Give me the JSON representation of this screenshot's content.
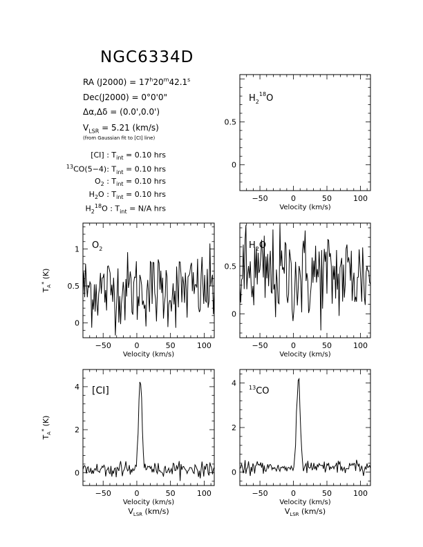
{
  "header": {
    "title": "NGC6334D",
    "ra": "RA (J2000) = 17h20m42.1s",
    "ra_parts": {
      "pre": "RA (J2000) =  17",
      "h": "h",
      "m_val": "20",
      "m": "m",
      "s_val": "42.1",
      "s": "s"
    },
    "dec": "Dec(J2000) = 0°0'0\"",
    "offset": "Δα,Δδ = (0.0',0.0')",
    "vlsr": "V_LSR = 5.21 (km/s)",
    "vlsr_parts": {
      "pre": "V",
      "sub": "LSR",
      "post": " = 5.21  (km/s)"
    },
    "vlsr_note": "(from Gaussian fit to [CI] line)"
  },
  "integration_times": [
    {
      "label_html": "[CI] : T<sub>int</sub> = 0.10 hrs"
    },
    {
      "label_html": "<sup>13</sup>CO(5−4): T<sub>int</sub> = 0.10 hrs"
    },
    {
      "label_html": "O<sub>2</sub> : T<sub>int</sub> = 0.10 hrs"
    },
    {
      "label_html": "H<sub>2</sub>O : T<sub>int</sub> = 0.10 hrs"
    },
    {
      "label_html": "H<sub>2</sub><sup>18</sup>O : T<sub>int</sub> = N/A hrs"
    }
  ],
  "chart_data": [
    {
      "type": "line",
      "id": "h218o",
      "label": "H2 18O",
      "xlabel": "Velocity (km/s)",
      "ylabel": "",
      "xlim": [
        -80,
        115
      ],
      "ylim": [
        -0.3,
        1.05
      ],
      "xticks": [
        -50,
        0,
        50,
        100
      ],
      "yticks": [
        0,
        0.5
      ],
      "x": [],
      "y": []
    },
    {
      "type": "line",
      "id": "o2",
      "label": "O2",
      "xlabel": "Velocity (km/s)",
      "ylabel": "T_A* (K)",
      "xlim": [
        -80,
        115
      ],
      "ylim": [
        -0.2,
        1.35
      ],
      "xticks": [
        -50,
        0,
        50,
        100
      ],
      "yticks": [
        0,
        0.5,
        1
      ],
      "noise_sigma": 0.25,
      "baseline": 0.45,
      "peak": null
    },
    {
      "type": "line",
      "id": "h2o",
      "label": "H2O",
      "xlabel": "Velocity (km/s)",
      "ylabel": "",
      "xlim": [
        -80,
        115
      ],
      "ylim": [
        -0.25,
        0.95
      ],
      "xticks": [
        -50,
        0,
        50,
        100
      ],
      "yticks": [
        0,
        0.5
      ],
      "noise_sigma": 0.25,
      "baseline": 0.4,
      "peak": null
    },
    {
      "type": "line",
      "id": "ci",
      "label": "[CI]",
      "xlabel": "Velocity (km/s)",
      "xlabel2": "V_LSR (km/s)",
      "ylabel": "T_A* (K)",
      "xlim": [
        -80,
        115
      ],
      "ylim": [
        -0.6,
        4.8
      ],
      "xticks": [
        -50,
        0,
        50,
        100
      ],
      "yticks": [
        0,
        2,
        4
      ],
      "noise_sigma": 0.18,
      "baseline": 0.2,
      "peak": {
        "center": 5.2,
        "amp": 4.2,
        "fwhm": 6
      }
    },
    {
      "type": "line",
      "id": "co13",
      "label": "13CO",
      "xlabel": "Velocity (km/s)",
      "xlabel2": "V_LSR (km/s)",
      "ylabel": "",
      "xlim": [
        -80,
        115
      ],
      "ylim": [
        -0.6,
        4.6
      ],
      "xticks": [
        -50,
        0,
        50,
        100
      ],
      "yticks": [
        0,
        2,
        4
      ],
      "noise_sigma": 0.16,
      "baseline": 0.25,
      "peak": {
        "center": 7.5,
        "amp": 4.05,
        "fwhm": 6
      }
    }
  ]
}
